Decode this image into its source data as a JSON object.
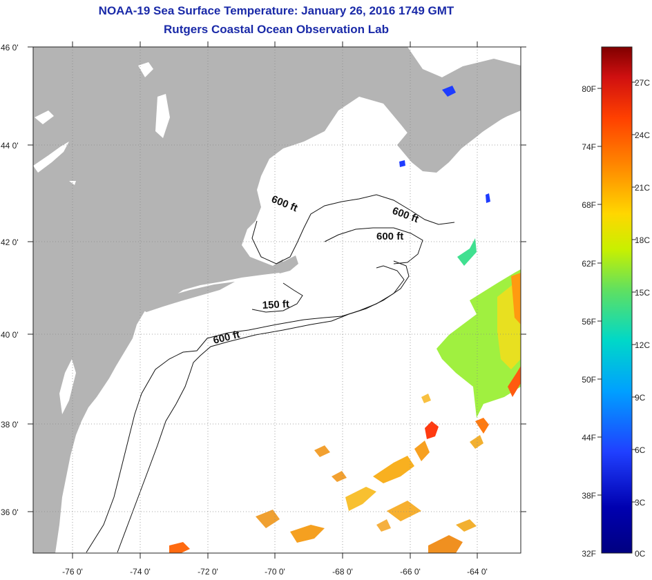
{
  "header": {
    "title": "NOAA-19 Sea Surface Temperature:  January 26, 2016 1749 GMT",
    "subtitle": "Rutgers Coastal Ocean Observation Lab"
  },
  "map": {
    "lat_labels": [
      "46 0'",
      "44 0'",
      "42 0'",
      "40 0'",
      "38 0'",
      "36 0'"
    ],
    "lon_labels": [
      "-76 0'",
      "-74 0'",
      "-72 0'",
      "-70 0'",
      "-68 0'",
      "-66 0'",
      "-64 0'"
    ],
    "contour_labels": [
      "600 ft",
      "600 ft",
      "600 ft",
      "150 ft",
      "600 ft"
    ],
    "colors": {
      "land": "#b4b4b4",
      "ocean": "#ffffff",
      "grid": "#777777"
    }
  },
  "colorbar": {
    "fahrenheit_labels": [
      "80F",
      "74F",
      "68F",
      "62F",
      "56F",
      "50F",
      "44F",
      "38F",
      "32F"
    ],
    "celsius_labels": [
      "27C",
      "24C",
      "21C",
      "18C",
      "15C",
      "12C",
      "9C",
      "6C",
      "3C",
      "0C"
    ],
    "colors": [
      "#800000",
      "#d01010",
      "#ff4000",
      "#ff8c00",
      "#ffd700",
      "#c8f000",
      "#60e060",
      "#00d8c8",
      "#00a0ff",
      "#2040ff",
      "#0000b0",
      "#000080"
    ]
  }
}
